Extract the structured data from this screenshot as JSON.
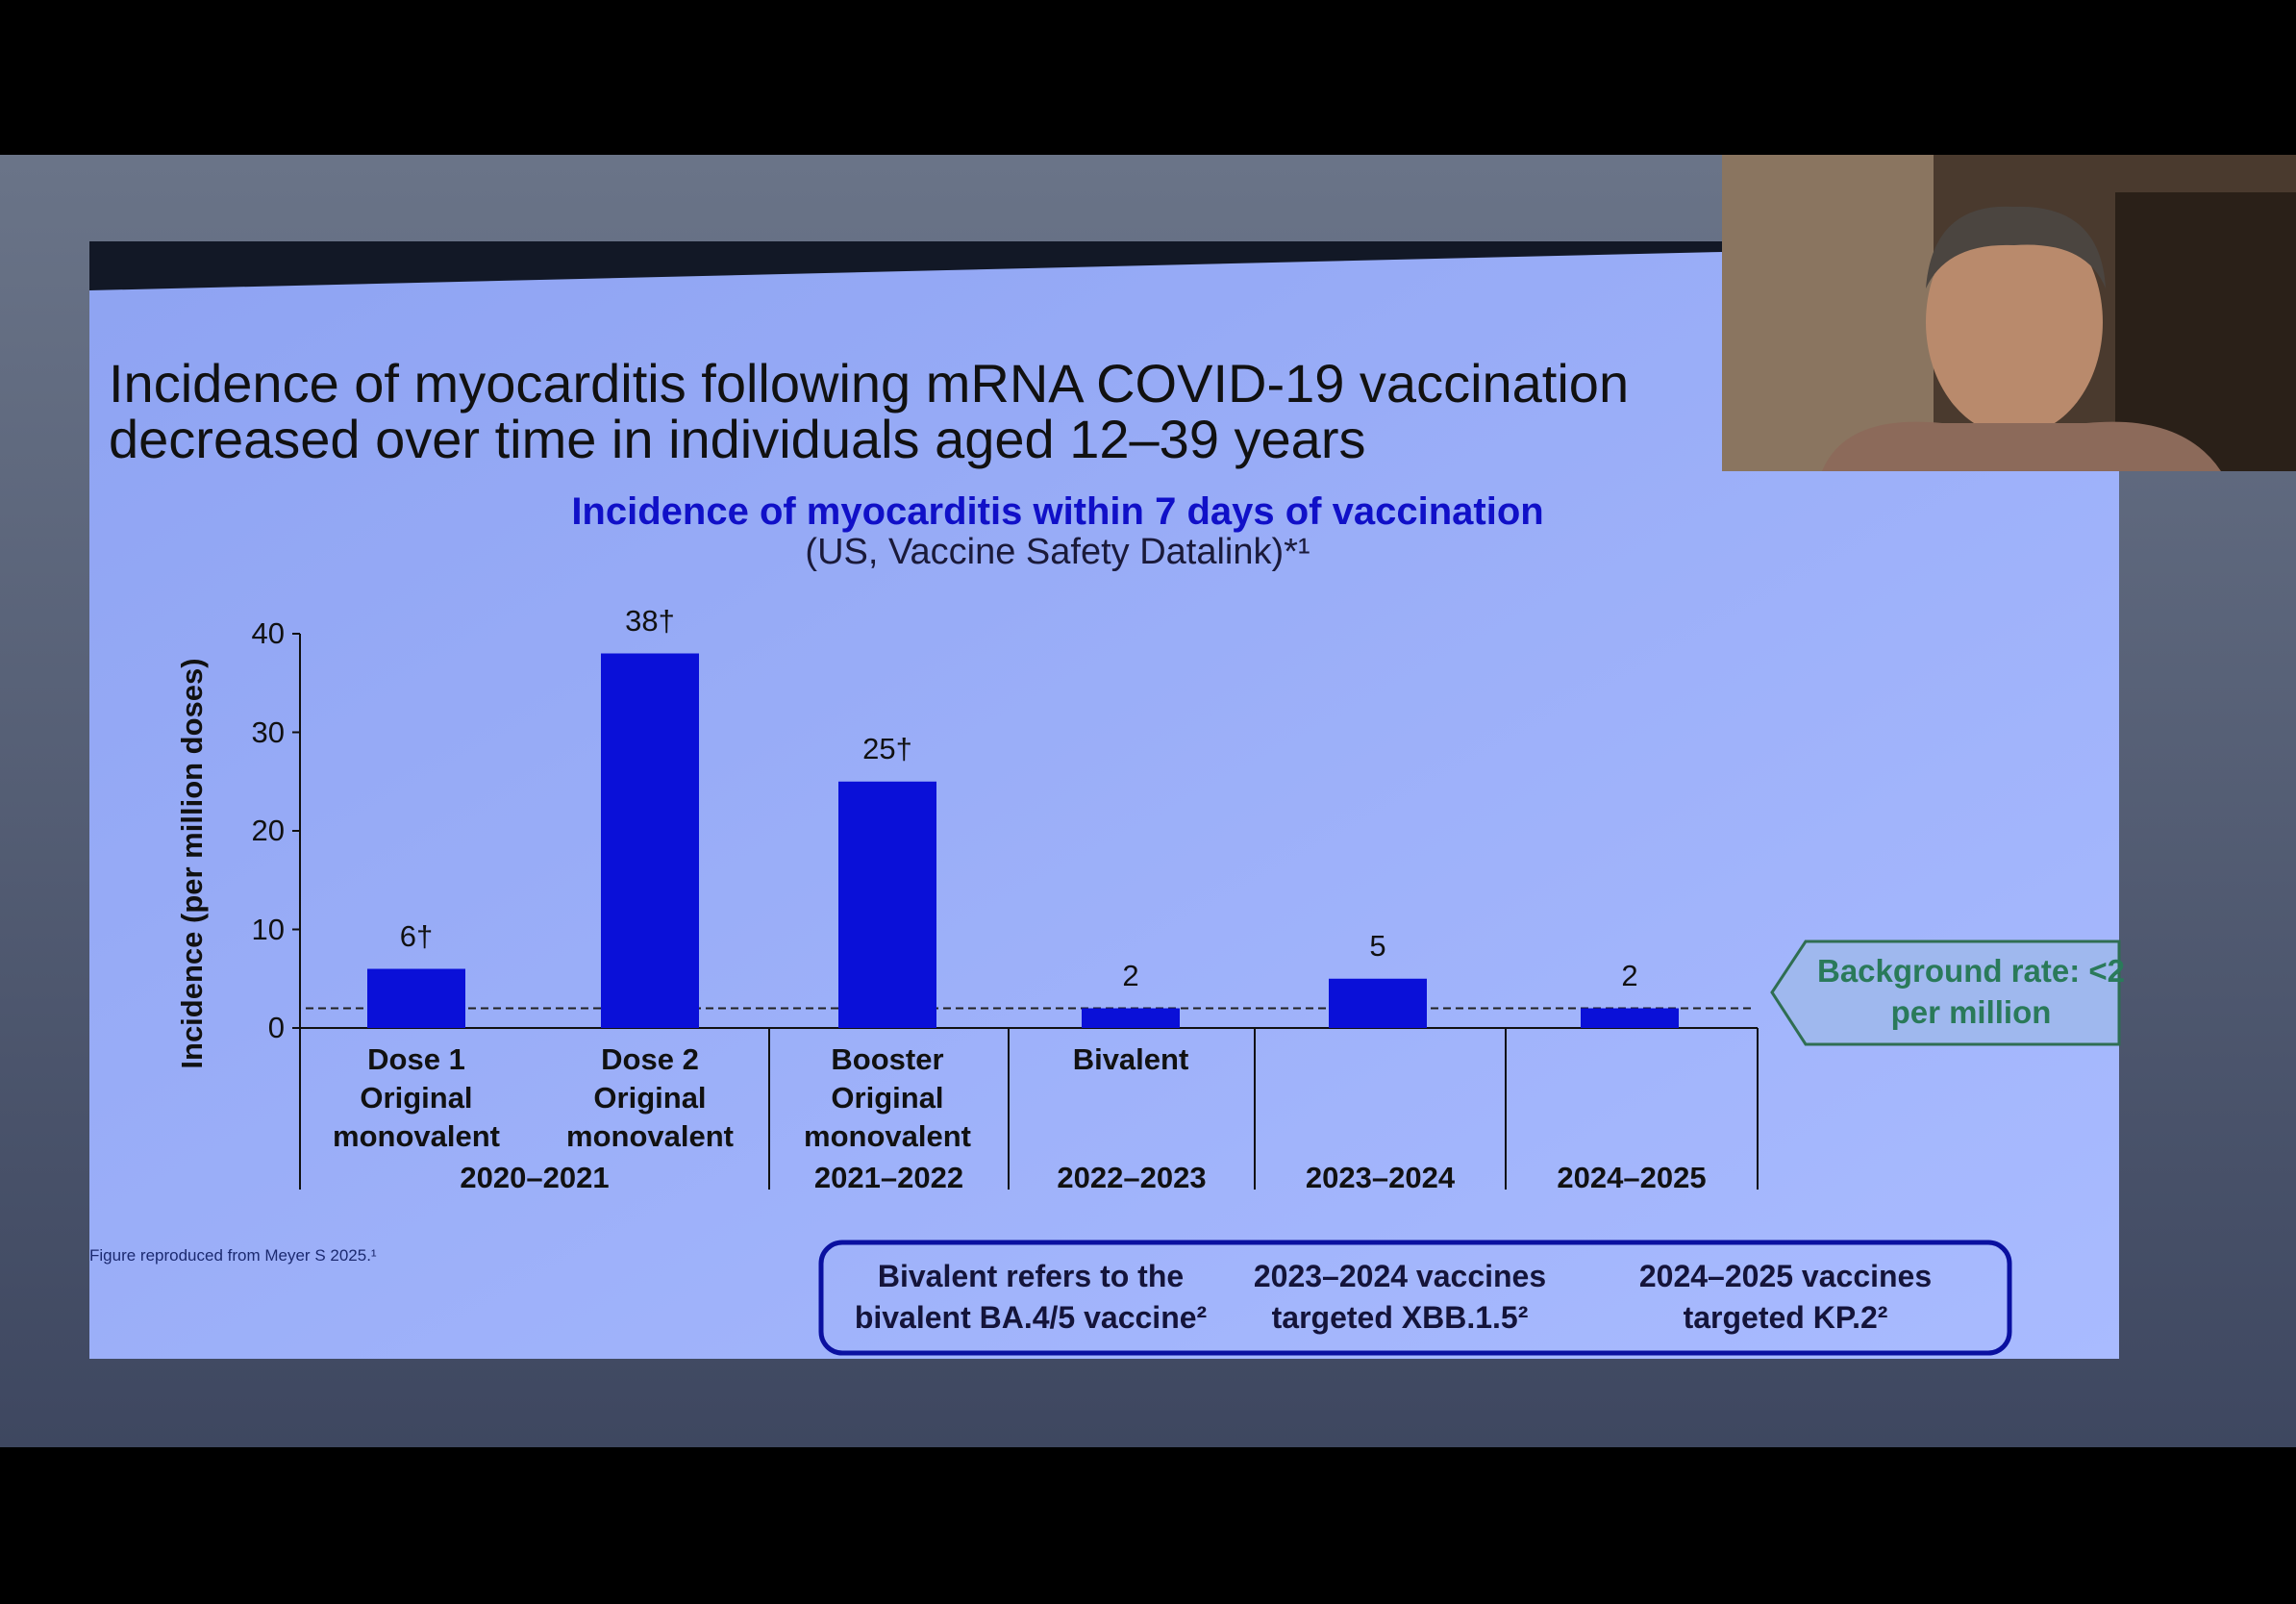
{
  "slide_title": "Incidence of myocarditis following mRNA COVID-19 vaccination decreased over time in individuals aged 12–39 years",
  "chart_data": {
    "type": "bar",
    "title": "Incidence of myocarditis within 7 days of vaccination",
    "subtitle": "(US, Vaccine Safety Datalink)*¹",
    "y_label": "Incidence (per million doses)",
    "categories": [
      "Dose 1 Original monovalent",
      "Dose 2 Original monovalent",
      "Booster Original monovalent",
      "Bivalent",
      null,
      null
    ],
    "periods": [
      "2020–2021",
      "2021–2022",
      "2022–2023",
      "2023–2024",
      "2024–2025"
    ],
    "values": [
      6,
      38,
      25,
      2,
      5,
      2
    ],
    "value_labels": [
      "6†",
      "38†",
      "25†",
      "2",
      "5",
      "2"
    ],
    "color": "#0a10d8",
    "ylim": [
      0,
      40
    ],
    "yticks": [
      0,
      10,
      20,
      30,
      40
    ],
    "background_rate": {
      "value": 2,
      "label": "Background rate: <2 per million"
    }
  },
  "source": "Figure reproduced from Meyer S 2025.¹",
  "notes": [
    "Bivalent refers to the bivalent BA.4/5 vaccine²",
    "2023–2024 vaccines targeted XBB.1.5²",
    "2024–2025 vaccines targeted KP.2²"
  ]
}
